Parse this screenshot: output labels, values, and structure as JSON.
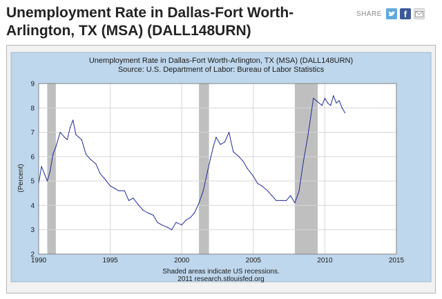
{
  "page": {
    "title": "Unemployment Rate in Dallas-Fort Worth-Arlington, TX (MSA) (DALL148URN)",
    "share_label": "SHARE",
    "share_buttons": [
      {
        "name": "twitter",
        "icon": "twitter-bird-icon"
      },
      {
        "name": "facebook",
        "icon": "facebook-f-icon",
        "glyph": "f"
      },
      {
        "name": "email",
        "icon": "envelope-icon"
      }
    ]
  },
  "colors": {
    "panel_bg": "#bfd7ec",
    "plot_bg": "#ffffff",
    "recession": "#bfbfbf",
    "line": "#1f2a9a",
    "text": "#1a1a1a"
  },
  "chart_data": {
    "type": "line",
    "title": "Unemployment Rate in Dallas-Fort Worth-Arlington, TX (MSA) (DALL148URN)",
    "subtitle": "Source: U.S. Department of Labor: Bureau of Labor Statistics",
    "ylabel": "(Percent)",
    "xlabel": "",
    "xlim": [
      1990,
      2015
    ],
    "ylim": [
      2,
      9
    ],
    "x_ticks": [
      1990,
      1995,
      2000,
      2005,
      2010,
      2015
    ],
    "y_ticks": [
      2,
      3,
      4,
      5,
      6,
      7,
      8,
      9
    ],
    "grid": true,
    "recessions": [
      {
        "start": 1990.6,
        "end": 1991.2
      },
      {
        "start": 2001.2,
        "end": 2001.9
      },
      {
        "start": 2007.9,
        "end": 2009.5
      }
    ],
    "series": [
      {
        "name": "DALL148URN",
        "x": [
          1990.0,
          1990.2,
          1990.4,
          1990.6,
          1990.8,
          1991.0,
          1991.2,
          1991.5,
          1991.8,
          1992.0,
          1992.2,
          1992.4,
          1992.6,
          1992.8,
          1993.0,
          1993.3,
          1993.6,
          1994.0,
          1994.3,
          1994.6,
          1995.0,
          1995.3,
          1995.6,
          1996.0,
          1996.3,
          1996.6,
          1997.0,
          1997.3,
          1997.6,
          1998.0,
          1998.3,
          1998.6,
          1999.0,
          1999.3,
          1999.6,
          2000.0,
          2000.3,
          2000.6,
          2000.9,
          2001.2,
          2001.5,
          2001.8,
          2002.0,
          2002.2,
          2002.4,
          2002.7,
          2003.0,
          2003.3,
          2003.6,
          2004.0,
          2004.3,
          2004.6,
          2005.0,
          2005.3,
          2005.6,
          2006.0,
          2006.3,
          2006.6,
          2007.0,
          2007.3,
          2007.6,
          2007.9,
          2008.2,
          2008.5,
          2008.8,
          2009.0,
          2009.2,
          2009.4,
          2009.6,
          2009.8,
          2010.0,
          2010.2,
          2010.4,
          2010.6,
          2010.8,
          2011.0,
          2011.2,
          2011.4
        ],
        "values": [
          4.9,
          5.6,
          5.3,
          5.0,
          5.4,
          6.1,
          6.4,
          7.0,
          6.8,
          6.7,
          7.2,
          7.5,
          6.9,
          6.8,
          6.7,
          6.1,
          5.9,
          5.7,
          5.3,
          5.1,
          4.8,
          4.7,
          4.6,
          4.6,
          4.2,
          4.3,
          4.0,
          3.8,
          3.7,
          3.6,
          3.3,
          3.2,
          3.1,
          3.0,
          3.3,
          3.2,
          3.4,
          3.5,
          3.7,
          4.1,
          4.6,
          5.4,
          5.9,
          6.4,
          6.8,
          6.5,
          6.6,
          7.0,
          6.2,
          6.0,
          5.8,
          5.5,
          5.2,
          4.9,
          4.8,
          4.6,
          4.4,
          4.2,
          4.2,
          4.2,
          4.4,
          4.1,
          4.6,
          5.8,
          6.8,
          7.6,
          8.4,
          8.3,
          8.2,
          8.1,
          8.4,
          8.2,
          8.1,
          8.5,
          8.2,
          8.3,
          8.0,
          7.8
        ]
      }
    ],
    "footnote": "Shaded areas indicate US recessions.",
    "credit": "2011 research.stlouisfed.org"
  }
}
